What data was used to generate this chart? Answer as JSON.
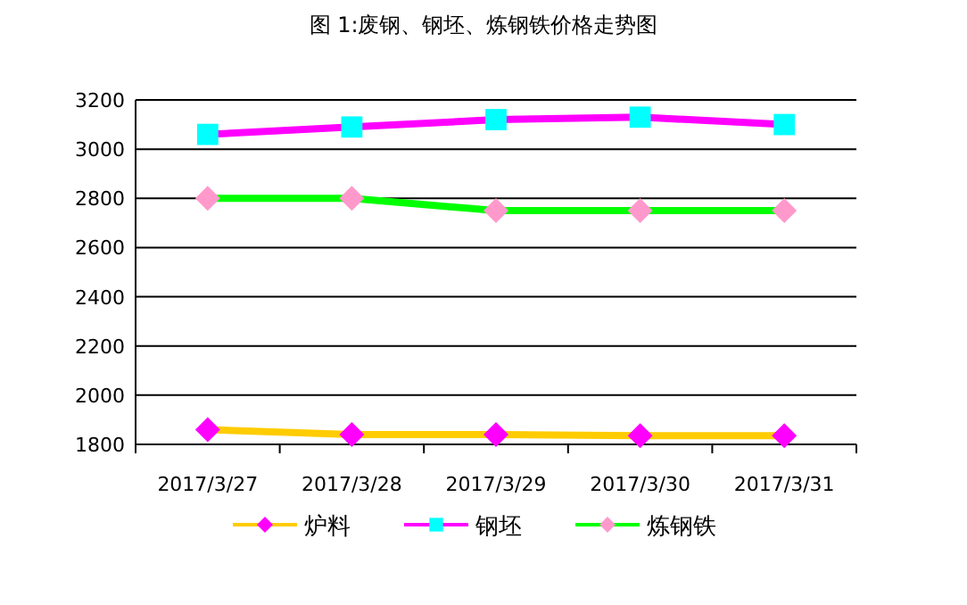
{
  "chart_data": {
    "type": "line",
    "title": "图 1:废钢、钢坯、炼钢铁价格走势图",
    "categories": [
      "2017/3/27",
      "2017/3/28",
      "2017/3/29",
      "2017/3/30",
      "2017/3/31"
    ],
    "series": [
      {
        "name": "炉料",
        "color": "#ffcc00",
        "marker": "diamond",
        "colors": [
          "#ff00ff",
          "#ff00ff",
          "#ff00ff",
          "#ff00ff",
          "#ff00ff"
        ],
        "values": [
          1860,
          1840,
          1840,
          1835,
          1835
        ]
      },
      {
        "name": "钢坯",
        "color": "#ff00ff",
        "marker": "square",
        "colors": [
          "#00ffff",
          "#00ffff",
          "#00ffff",
          "#00ffff",
          "#00ffff"
        ],
        "values": [
          3060,
          3090,
          3120,
          3130,
          3100
        ]
      },
      {
        "name": "炼钢铁",
        "color": "#00ff00",
        "marker": "diamond",
        "colors": [
          "#ff99cc",
          "#ff99cc",
          "#ff99cc",
          "#ff99cc",
          "#ff99cc"
        ],
        "values": [
          2800,
          2800,
          2750,
          2750,
          2750
        ]
      }
    ],
    "ylim": [
      1800,
      3200
    ],
    "yticks": [
      1800,
      2000,
      2200,
      2400,
      2600,
      2800,
      3000,
      3200
    ],
    "grid": "y",
    "legend": "bottom"
  }
}
